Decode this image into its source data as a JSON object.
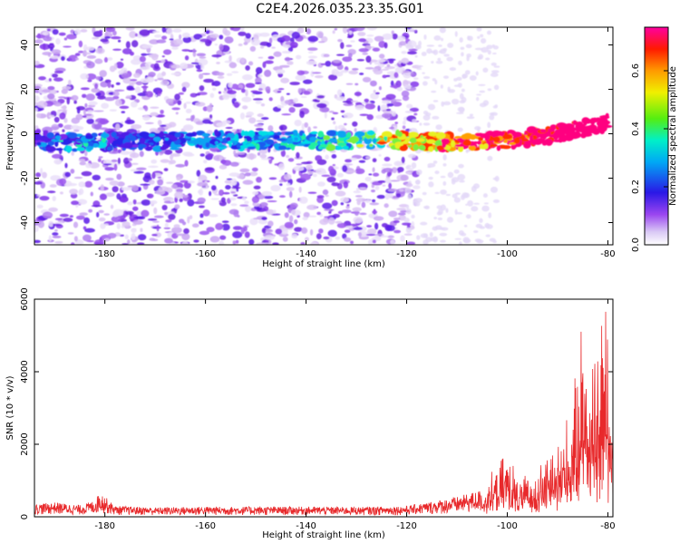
{
  "title": "C2E4.2026.035.23.35.G01",
  "colors": {
    "snr_line": "#e8292b",
    "axis": "#000000"
  },
  "chart_data": [
    {
      "type": "heatmap",
      "title": "C2E4.2026.035.23.35.G01",
      "xlabel": "Height of straight line (km)",
      "ylabel": "Frequency (Hz)",
      "xlim": [
        -194,
        -79
      ],
      "ylim": [
        -50,
        48
      ],
      "xticks": [
        -180,
        -160,
        -140,
        -120,
        -100,
        -80
      ],
      "yticks": [
        -40,
        -20,
        0,
        20,
        40
      ],
      "colorbar": {
        "label": "Normalized spectral amplitude",
        "range": [
          0,
          0.75
        ],
        "ticks": [
          0.0,
          0.2,
          0.4,
          0.6
        ],
        "colormap": "rainbow (white, lavender, purple, blue, cyan, green, yellow, orange, red, magenta)",
        "placement": "right"
      },
      "features": {
        "signal_track": [
          {
            "x": -194,
            "y": -2
          },
          {
            "x": -190,
            "y": -4
          },
          {
            "x": -185,
            "y": -4
          },
          {
            "x": -160,
            "y": -3
          },
          {
            "x": -140,
            "y": -3
          },
          {
            "x": -120,
            "y": -3
          },
          {
            "x": -110,
            "y": -4
          },
          {
            "x": -100,
            "y": -3
          },
          {
            "x": -90,
            "y": 0
          },
          {
            "x": -80,
            "y": 5
          }
        ],
        "noise_region_x": [
          -194,
          -120
        ],
        "grid": false
      }
    },
    {
      "type": "line",
      "xlabel": "Height of straight line (km)",
      "ylabel": "SNR (10 * v/v)",
      "xlim": [
        -194,
        -79
      ],
      "ylim": [
        0,
        6000
      ],
      "xticks": [
        -180,
        -160,
        -140,
        -120,
        -100,
        -80
      ],
      "yticks": [
        0,
        2000,
        4000,
        6000
      ],
      "grid": false,
      "series_trend": {
        "x": [
          -194,
          -190,
          -185,
          -182,
          -181,
          -178,
          -170,
          -160,
          -150,
          -140,
          -130,
          -120,
          -115,
          -110,
          -105,
          -102,
          -100,
          -98,
          -95,
          -92,
          -90,
          -88,
          -86,
          -85,
          -84,
          -82,
          -80,
          -79
        ],
        "y": [
          350,
          400,
          320,
          450,
          700,
          300,
          260,
          280,
          280,
          280,
          270,
          300,
          420,
          550,
          750,
          1100,
          1600,
          900,
          1000,
          1500,
          1900,
          2300,
          3300,
          5200,
          3800,
          4200,
          5700,
          2600
        ]
      }
    }
  ]
}
